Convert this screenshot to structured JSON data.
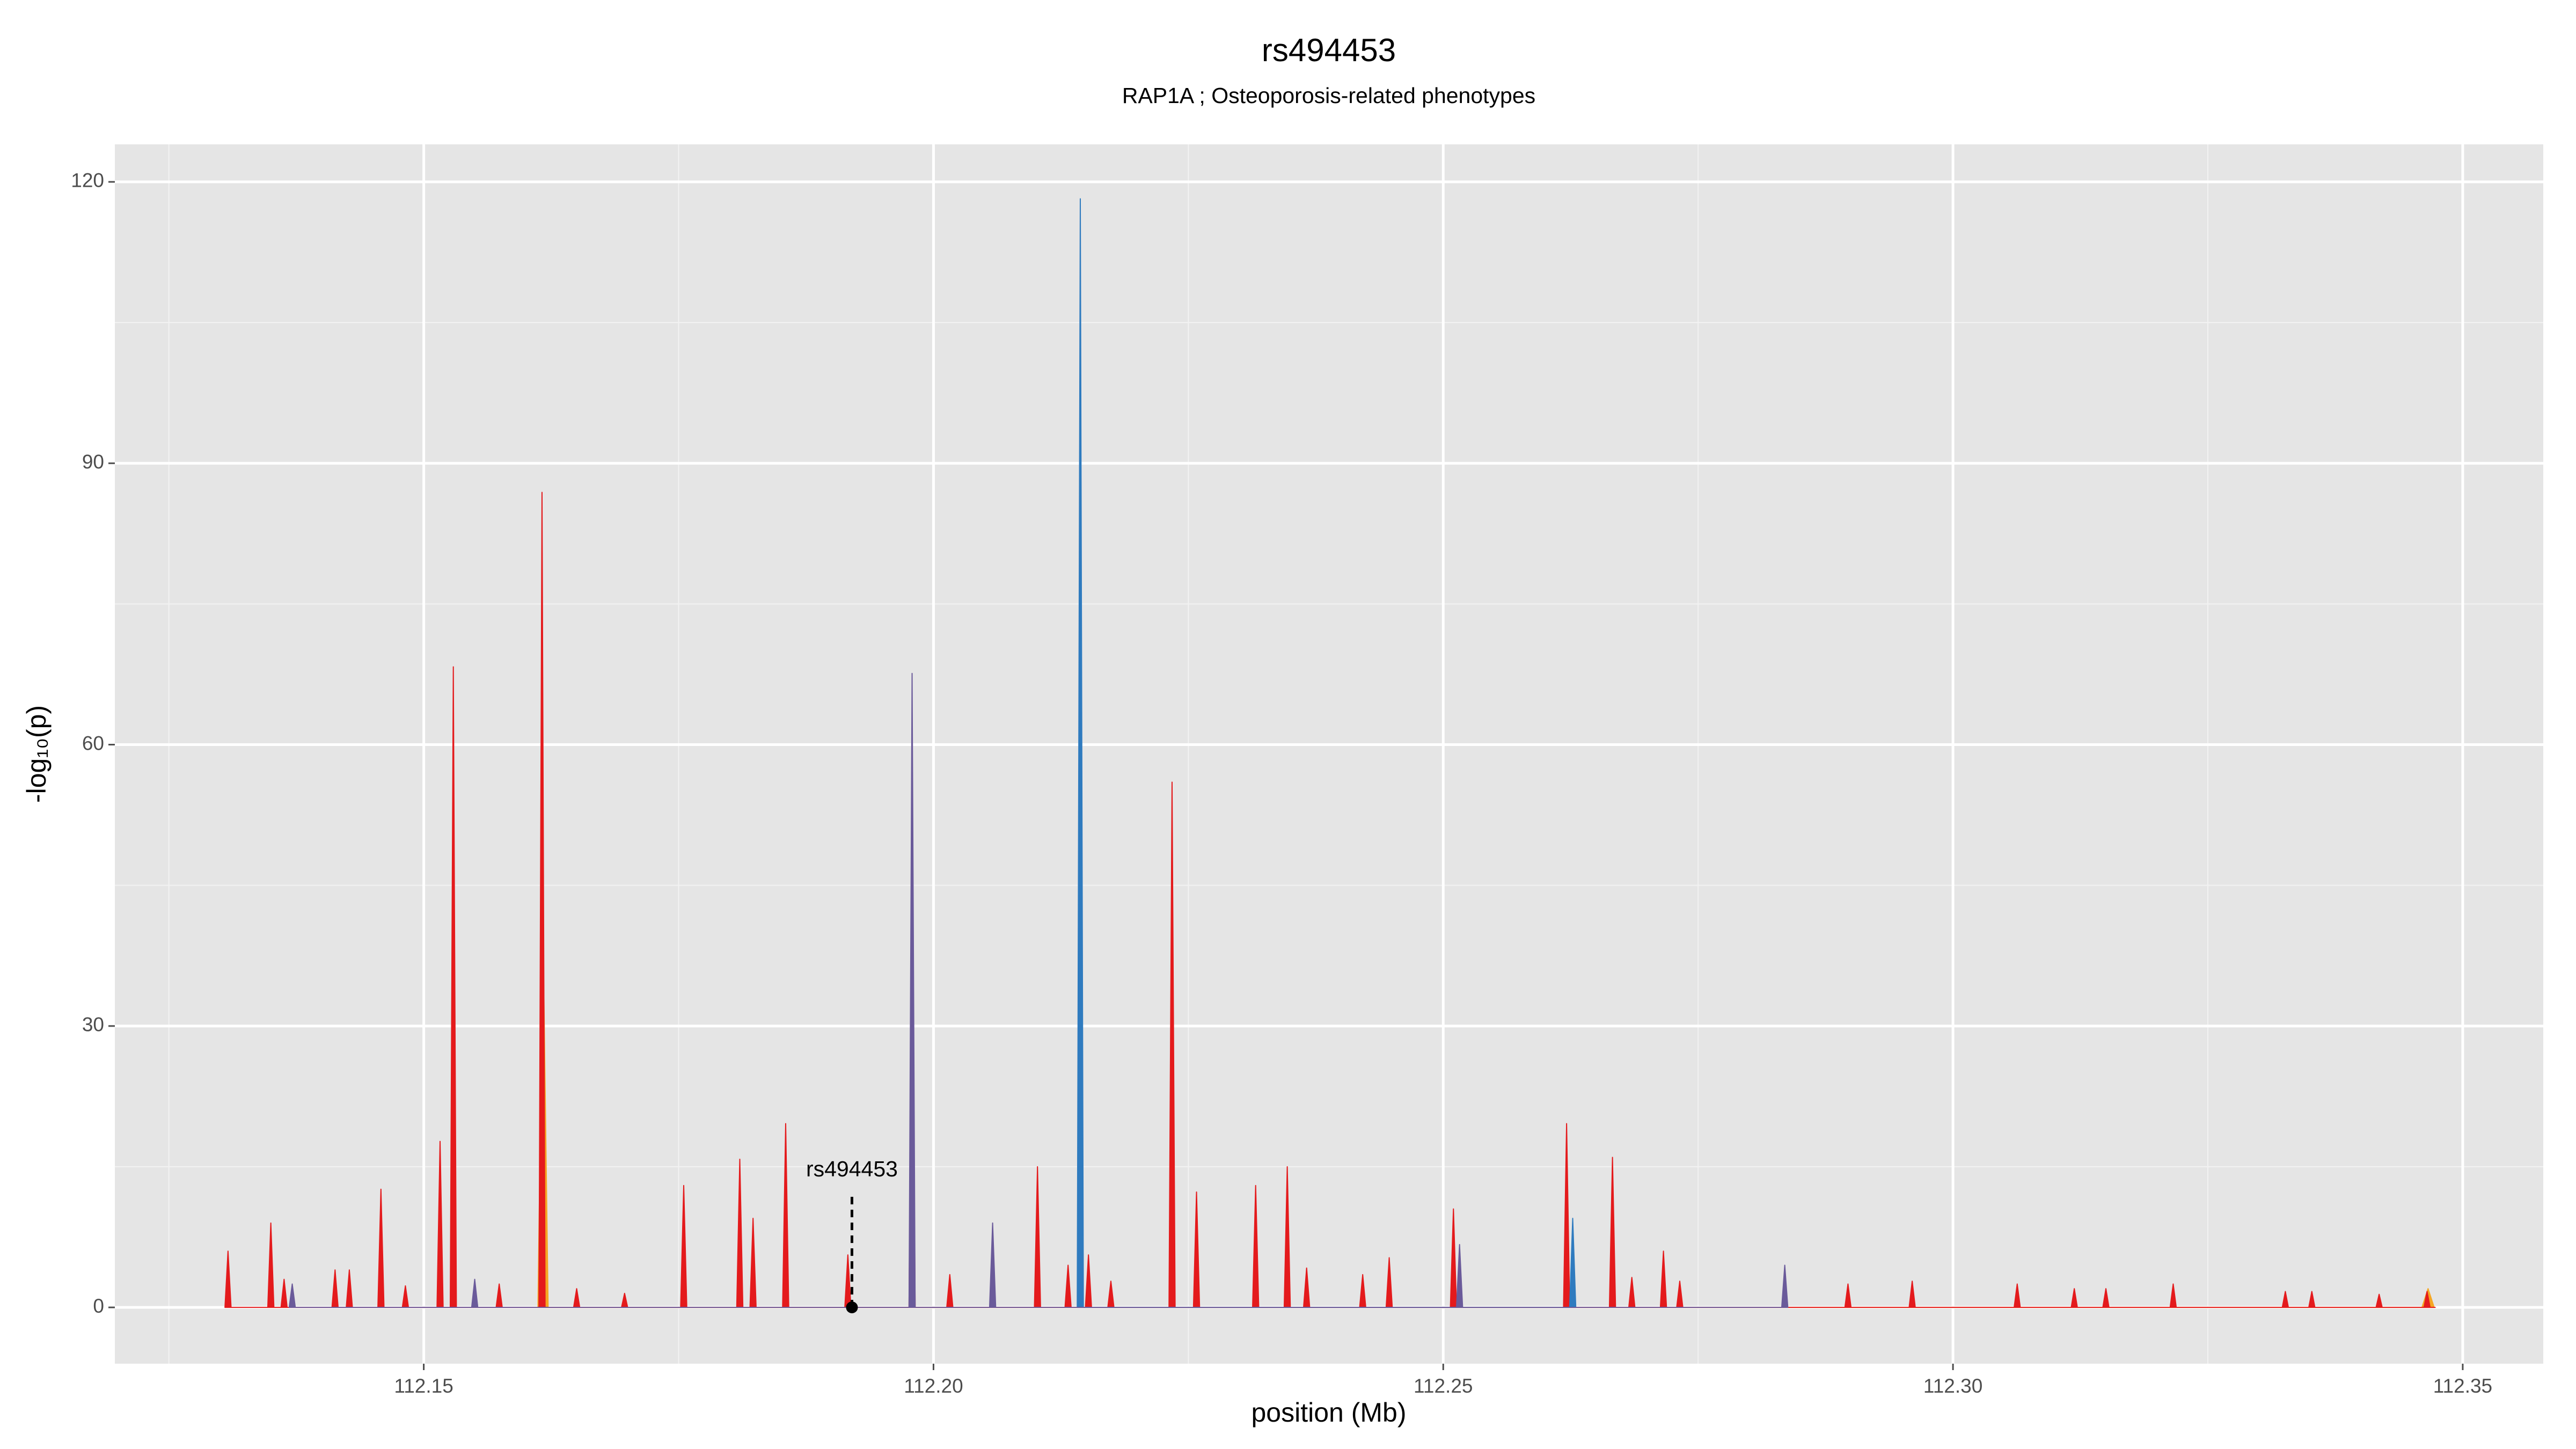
{
  "chart_data": {
    "type": "area",
    "title": "rs494453",
    "subtitle": "RAP1A ; Osteoporosis-related phenotypes",
    "xlabel": "position (Mb)",
    "ylabel": "-log₁₀(p)",
    "xlim": [
      112.1197,
      112.3579
    ],
    "ylim": [
      -6,
      124
    ],
    "xticks": [
      112.15,
      {
        "value": 112.2,
        "label": "112.20"
      },
      112.25,
      {
        "value": 112.3,
        "label": "112.30"
      },
      112.35
    ],
    "yticks": [
      0,
      30,
      60,
      90,
      120
    ],
    "xminor": [
      112.125,
      112.175,
      112.225,
      112.275,
      112.325
    ],
    "yminor": [
      15,
      45,
      75,
      105
    ],
    "grid": true,
    "series": [
      {
        "color": "#f5a623",
        "x": [
          112.1612,
          112.1617,
          112.1622,
          112.346,
          112.3466,
          112.3472
        ],
        "values": [
          0,
          40,
          0,
          0,
          2,
          0
        ]
      },
      {
        "color": "#e41a1c",
        "x": [
          112.1305,
          112.1308,
          112.1311,
          112.1347,
          112.135,
          112.1353,
          112.136,
          112.1363,
          112.1366,
          112.141,
          112.1413,
          112.1416,
          112.1424,
          112.1427,
          112.143,
          112.1455,
          112.1458,
          112.1461,
          112.1479,
          112.1482,
          112.1485,
          112.1513,
          112.1516,
          112.1519,
          112.1526,
          112.1529,
          112.1532,
          112.1571,
          112.1574,
          112.1577,
          112.1613,
          112.1616,
          112.1619,
          112.1647,
          112.165,
          112.1653,
          112.1694,
          112.1697,
          112.17,
          112.1752,
          112.1755,
          112.1758,
          112.1807,
          112.181,
          112.1813,
          112.182,
          112.1823,
          112.1826,
          112.1852,
          112.1855,
          112.1858,
          112.1913,
          112.1916,
          112.1919,
          112.1976,
          112.1979,
          112.1982,
          112.2013,
          112.2016,
          112.2019,
          112.2099,
          112.2102,
          112.2105,
          112.2129,
          112.2132,
          112.2135,
          112.2149,
          112.2152,
          112.2155,
          112.2171,
          112.2174,
          112.2177,
          112.2231,
          112.2234,
          112.2237,
          112.2255,
          112.2258,
          112.2261,
          112.2313,
          112.2316,
          112.2319,
          112.2344,
          112.2347,
          112.235,
          112.2363,
          112.2366,
          112.2369,
          112.2418,
          112.2421,
          112.2424,
          112.2444,
          112.2447,
          112.245,
          112.2507,
          112.251,
          112.2513,
          112.2618,
          112.2621,
          112.2624,
          112.2663,
          112.2666,
          112.2669,
          112.2682,
          112.2685,
          112.2688,
          112.2713,
          112.2716,
          112.2719,
          112.2729,
          112.2732,
          112.2735,
          112.2894,
          112.2897,
          112.29,
          112.2957,
          112.296,
          112.2963,
          112.306,
          112.3063,
          112.3066,
          112.3116,
          112.3119,
          112.3122,
          112.3147,
          112.315,
          112.3153,
          112.3213,
          112.3216,
          112.3219,
          112.3323,
          112.3326,
          112.3329,
          112.3349,
          112.3352,
          112.3355,
          112.3415,
          112.3418,
          112.3421,
          112.3462,
          112.3465,
          112.3468,
          112.3473
        ],
        "values": [
          0,
          6,
          0,
          0,
          9,
          0,
          0,
          3,
          0,
          0,
          4,
          0,
          0,
          4,
          0,
          0,
          12.6,
          0,
          0,
          2.3,
          0,
          0,
          17.7,
          0,
          0,
          68.3,
          0,
          0,
          2.5,
          0,
          0,
          86.9,
          0,
          0,
          2,
          0,
          0,
          1.5,
          0,
          0,
          13,
          0,
          0,
          15.8,
          0,
          0,
          9.5,
          0,
          0,
          19.6,
          0,
          0,
          5.6,
          0,
          0,
          45,
          0,
          0,
          3.5,
          0,
          0,
          15,
          0,
          0,
          4.5,
          0,
          0,
          5.6,
          0,
          0,
          2.8,
          0,
          0,
          56,
          0,
          0,
          12.3,
          0,
          0,
          13,
          0,
          0,
          15,
          0,
          0,
          4.2,
          0,
          0,
          3.5,
          0,
          0,
          5.3,
          0,
          0,
          10.5,
          0,
          0,
          19.6,
          0,
          0,
          16,
          0,
          0,
          3.2,
          0,
          0,
          6,
          0,
          0,
          2.8,
          0,
          0,
          2.5,
          0,
          0,
          2.8,
          0,
          0,
          2.5,
          0,
          0,
          2,
          0,
          0,
          2,
          0,
          0,
          2.5,
          0,
          0,
          1.7,
          0,
          0,
          1.7,
          0,
          0,
          1.4,
          0,
          0,
          1.7,
          0,
          0
        ]
      },
      {
        "color": "#2f7bbf",
        "x": [
          112.2141,
          112.2144,
          112.2147,
          112.2624,
          112.2627,
          112.263
        ],
        "values": [
          0,
          118.2,
          0,
          0,
          9.5,
          0
        ]
      },
      {
        "color": "#6a5a9a",
        "x": [
          112.1368,
          112.1371,
          112.1374,
          112.1547,
          112.155,
          112.1553,
          112.1976,
          112.1979,
          112.1982,
          112.2055,
          112.2058,
          112.2061,
          112.2513,
          112.2516,
          112.2519,
          112.2832,
          112.2835,
          112.2838
        ],
        "values": [
          0,
          2.5,
          0,
          0,
          3,
          0,
          0,
          67.6,
          0,
          0,
          9,
          0,
          0,
          6.7,
          0,
          0,
          4.5,
          0
        ]
      }
    ],
    "annotation": {
      "text": "rs494453",
      "x": 112.192,
      "y": 0
    }
  }
}
